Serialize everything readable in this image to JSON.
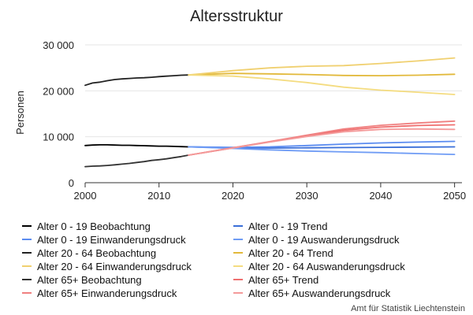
{
  "chart_data": {
    "type": "line",
    "title": "Altersstruktur",
    "xlabel": "",
    "ylabel": "Personen",
    "xlim": [
      2000,
      2051
    ],
    "ylim": [
      0,
      30000
    ],
    "x_ticks": [
      2000,
      2010,
      2020,
      2030,
      2040,
      2050
    ],
    "x_tick_labels": [
      "2000",
      "2010",
      "2020",
      "2030",
      "2040",
      "2050"
    ],
    "y_ticks": [
      0,
      10000,
      20000,
      30000
    ],
    "y_tick_labels": [
      "0",
      "10 000",
      "20 000",
      "30 000"
    ],
    "grid": "horizontal",
    "legend_position": "bottom",
    "credit": "Amt für Statistik Liechtenstein",
    "series": [
      {
        "name": "Alter 0 - 19 Beobachtung",
        "color": "#000000",
        "points": [
          [
            2000,
            8100
          ],
          [
            2001,
            8200
          ],
          [
            2002,
            8250
          ],
          [
            2003,
            8250
          ],
          [
            2004,
            8200
          ],
          [
            2005,
            8150
          ],
          [
            2006,
            8150
          ],
          [
            2007,
            8100
          ],
          [
            2008,
            8050
          ],
          [
            2009,
            8000
          ],
          [
            2010,
            7950
          ],
          [
            2011,
            7950
          ],
          [
            2012,
            7900
          ],
          [
            2013,
            7850
          ],
          [
            2014,
            7800
          ]
        ]
      },
      {
        "name": "Alter 0 - 19 Trend",
        "color": "#3a6fd8",
        "points": [
          [
            2014,
            7800
          ],
          [
            2020,
            7600
          ],
          [
            2025,
            7550
          ],
          [
            2030,
            7600
          ],
          [
            2035,
            7650
          ],
          [
            2040,
            7700
          ],
          [
            2045,
            7750
          ],
          [
            2050,
            7800
          ]
        ]
      },
      {
        "name": "Alter 0 - 19 Einwanderungsdruck",
        "color": "#5b8cf0",
        "points": [
          [
            2014,
            7800
          ],
          [
            2020,
            7700
          ],
          [
            2025,
            7800
          ],
          [
            2030,
            8100
          ],
          [
            2035,
            8400
          ],
          [
            2040,
            8650
          ],
          [
            2045,
            8850
          ],
          [
            2050,
            9000
          ]
        ]
      },
      {
        "name": "Alter 0 - 19 Auswanderungsdruck",
        "color": "#6f9cf5",
        "points": [
          [
            2014,
            7800
          ],
          [
            2020,
            7450
          ],
          [
            2025,
            7150
          ],
          [
            2030,
            6900
          ],
          [
            2035,
            6700
          ],
          [
            2040,
            6550
          ],
          [
            2045,
            6350
          ],
          [
            2050,
            6150
          ]
        ]
      },
      {
        "name": "Alter 20 - 64 Beobachtung",
        "color": "#222222",
        "points": [
          [
            2000,
            21200
          ],
          [
            2001,
            21700
          ],
          [
            2002,
            21900
          ],
          [
            2003,
            22200
          ],
          [
            2004,
            22450
          ],
          [
            2005,
            22600
          ],
          [
            2006,
            22700
          ],
          [
            2007,
            22800
          ],
          [
            2008,
            22850
          ],
          [
            2009,
            22950
          ],
          [
            2010,
            23100
          ],
          [
            2011,
            23200
          ],
          [
            2012,
            23300
          ],
          [
            2013,
            23400
          ],
          [
            2014,
            23450
          ]
        ]
      },
      {
        "name": "Alter 20 - 64 Trend",
        "color": "#e2b93b",
        "points": [
          [
            2014,
            23450
          ],
          [
            2020,
            23800
          ],
          [
            2025,
            23700
          ],
          [
            2030,
            23550
          ],
          [
            2035,
            23350
          ],
          [
            2040,
            23300
          ],
          [
            2045,
            23400
          ],
          [
            2050,
            23600
          ]
        ]
      },
      {
        "name": "Alter 20 - 64 Einwanderungsdruck",
        "color": "#f0d070",
        "points": [
          [
            2014,
            23450
          ],
          [
            2020,
            24400
          ],
          [
            2025,
            25000
          ],
          [
            2030,
            25350
          ],
          [
            2035,
            25500
          ],
          [
            2040,
            25950
          ],
          [
            2045,
            26500
          ],
          [
            2050,
            27150
          ]
        ]
      },
      {
        "name": "Alter 20 - 64 Auswanderungsdruck",
        "color": "#f4dc80",
        "points": [
          [
            2014,
            23450
          ],
          [
            2020,
            23200
          ],
          [
            2025,
            22600
          ],
          [
            2030,
            21800
          ],
          [
            2035,
            20800
          ],
          [
            2040,
            20150
          ],
          [
            2045,
            19700
          ],
          [
            2050,
            19200
          ]
        ]
      },
      {
        "name": "Alter 65+ Beobachtung",
        "color": "#333333",
        "points": [
          [
            2000,
            3500
          ],
          [
            2001,
            3600
          ],
          [
            2002,
            3650
          ],
          [
            2003,
            3750
          ],
          [
            2004,
            3900
          ],
          [
            2005,
            4050
          ],
          [
            2006,
            4200
          ],
          [
            2007,
            4400
          ],
          [
            2008,
            4600
          ],
          [
            2009,
            4850
          ],
          [
            2010,
            5000
          ],
          [
            2011,
            5200
          ],
          [
            2012,
            5450
          ],
          [
            2013,
            5700
          ],
          [
            2014,
            6000
          ]
        ]
      },
      {
        "name": "Alter 65+ Trend",
        "color": "#ef6f6f",
        "points": [
          [
            2014,
            6000
          ],
          [
            2020,
            7600
          ],
          [
            2025,
            8900
          ],
          [
            2030,
            10200
          ],
          [
            2035,
            11400
          ],
          [
            2040,
            12100
          ],
          [
            2045,
            12450
          ],
          [
            2050,
            12600
          ]
        ]
      },
      {
        "name": "Alter 65+ Einwanderungsdruck",
        "color": "#f08080",
        "points": [
          [
            2014,
            6000
          ],
          [
            2020,
            7600
          ],
          [
            2025,
            8950
          ],
          [
            2030,
            10350
          ],
          [
            2035,
            11700
          ],
          [
            2040,
            12500
          ],
          [
            2045,
            13000
          ],
          [
            2050,
            13400
          ]
        ]
      },
      {
        "name": "Alter 65+ Auswanderungsdruck",
        "color": "#f49a9a",
        "points": [
          [
            2014,
            6000
          ],
          [
            2020,
            7550
          ],
          [
            2025,
            8850
          ],
          [
            2030,
            10050
          ],
          [
            2035,
            11100
          ],
          [
            2040,
            11600
          ],
          [
            2045,
            11700
          ],
          [
            2050,
            11600
          ]
        ]
      }
    ]
  }
}
